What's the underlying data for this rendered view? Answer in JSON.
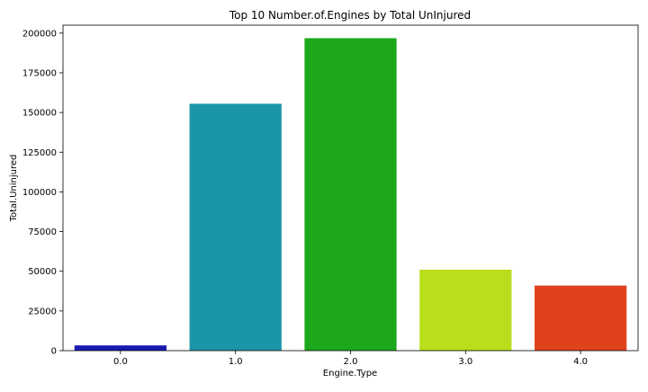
{
  "chart_data": {
    "type": "bar",
    "title": "Top 10 Number.of.Engines by Total UnInjured",
    "xlabel": "Engine.Type",
    "ylabel": "Total.Uninjured",
    "categories": [
      "0.0",
      "1.0",
      "2.0",
      "3.0",
      "4.0"
    ],
    "values": [
      3300,
      155500,
      196800,
      51000,
      41000
    ],
    "colors": [
      "#1a1ab0",
      "#1a96a8",
      "#1ca81a",
      "#b8de1c",
      "#e0421e"
    ],
    "ylim": [
      0,
      205000
    ],
    "yticks": [
      0,
      25000,
      50000,
      75000,
      100000,
      125000,
      150000,
      175000,
      200000
    ],
    "grid": false
  }
}
